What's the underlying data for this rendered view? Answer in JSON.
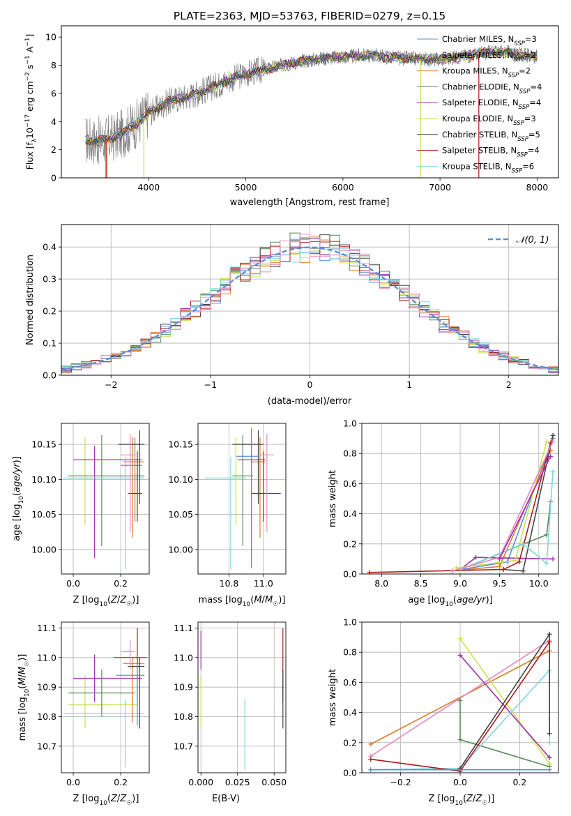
{
  "title": "PLATE=2363, MJD=53763, FIBERID=0279, z=0.15",
  "colors": {
    "chabrier_miles": "#5b8ed6",
    "salpeter_miles": "#888888",
    "kroupa_miles": "#e07b28",
    "chabrier_elodie": "#5a8a5a",
    "salpeter_elodie": "#9b2fae",
    "kroupa_elodie": "#c9e24a",
    "chabrier_stelib": "#444444",
    "salpeter_stelib": "#b01818",
    "kroupa_stelib": "#7fd6e0",
    "pink": "#e48ac0",
    "normal_curve": "#5b8ed6"
  },
  "chart_data": [
    {
      "id": "spectrum",
      "type": "line",
      "xlabel": "wavelength [Angstrom, rest frame]",
      "ylabel": "Flux [f_λ10^-17 erg cm^-2 s^-1 A^-1]",
      "xlim": [
        3100,
        8220
      ],
      "ylim": [
        0,
        10.8
      ],
      "xticks": [
        4000,
        5000,
        6000,
        7000,
        8000
      ],
      "yticks": [
        0,
        2,
        4,
        6,
        8,
        10
      ],
      "grid": false,
      "legend_position": "top-right",
      "legend": [
        {
          "key": "chabrier_miles",
          "label": "Chabrier MILES, N",
          "sub": "SSP",
          "suffix": "=3"
        },
        {
          "key": "salpeter_miles",
          "label": "Salpeter MILES, N",
          "sub": "SSP",
          "suffix": "=2"
        },
        {
          "key": "kroupa_miles",
          "label": "Kroupa MILES, N",
          "sub": "SSP",
          "suffix": "=2"
        },
        {
          "key": "chabrier_elodie",
          "label": "Chabrier ELODIE, N",
          "sub": "SSP",
          "suffix": "=4"
        },
        {
          "key": "salpeter_elodie",
          "label": "Salpeter ELODIE, N",
          "sub": "SSP",
          "suffix": "=4"
        },
        {
          "key": "kroupa_elodie",
          "label": "Kroupa ELODIE, N",
          "sub": "SSP",
          "suffix": "=3"
        },
        {
          "key": "chabrier_stelib",
          "label": "Chabrier STELIB, N",
          "sub": "SSP",
          "suffix": "=5"
        },
        {
          "key": "salpeter_stelib",
          "label": "Salpeter STELIB, N",
          "sub": "SSP",
          "suffix": "=4"
        },
        {
          "key": "kroupa_stelib",
          "label": "Kroupa STELIB, N",
          "sub": "SSP",
          "suffix": "=6"
        }
      ],
      "continuum_points": [
        [
          3350,
          2.7
        ],
        [
          3500,
          2.6
        ],
        [
          3700,
          3.0
        ],
        [
          3900,
          4.0
        ],
        [
          4000,
          4.6
        ],
        [
          4200,
          5.4
        ],
        [
          4500,
          6.0
        ],
        [
          4800,
          6.9
        ],
        [
          5000,
          7.4
        ],
        [
          5200,
          7.7
        ],
        [
          5500,
          8.2
        ],
        [
          5800,
          8.5
        ],
        [
          6000,
          8.6
        ],
        [
          6300,
          8.7
        ],
        [
          6600,
          8.5
        ],
        [
          7000,
          8.4
        ],
        [
          7300,
          8.7
        ],
        [
          7600,
          9.0
        ],
        [
          8000,
          8.6
        ]
      ]
    },
    {
      "id": "residuals",
      "type": "histogram",
      "xlabel": "(data-model)/error",
      "ylabel": "Normed distribution",
      "xlim": [
        -2.5,
        2.5
      ],
      "ylim": [
        0,
        0.47
      ],
      "xticks": [
        -2,
        -1,
        0,
        1,
        2
      ],
      "yticks": [
        0.0,
        0.1,
        0.2,
        0.3,
        0.4
      ],
      "grid": true,
      "legend_position": "top-right",
      "legend_label": "N(0,1)",
      "bin_width": 0.1
    },
    {
      "id": "age_vs_Z",
      "type": "errorbar",
      "xlabel": "Z [log10(Z/Z☉)]",
      "ylabel": "age  [log10(age/yr)]",
      "xlim": [
        -0.05,
        0.32
      ],
      "ylim": [
        9.965,
        10.18
      ],
      "xticks": [
        0.0,
        0.2
      ],
      "yticks": [
        10.0,
        10.05,
        10.1,
        10.15
      ],
      "grid": true,
      "points": [
        {
          "key": "kroupa_elodie",
          "x": 0.05,
          "xerr": [
            0.07,
            0.05
          ],
          "y": 10.1,
          "yerr": [
            0.065,
            0.06
          ]
        },
        {
          "key": "salpeter_elodie",
          "x": 0.09,
          "xerr": [
            0.09,
            0.2
          ],
          "y": 10.128,
          "yerr": [
            0.14,
            0.02
          ]
        },
        {
          "key": "chabrier_elodie",
          "x": 0.12,
          "xerr": [
            0.14,
            0.18
          ],
          "y": 10.105,
          "yerr": [
            0.1,
            0.058
          ]
        },
        {
          "key": "kroupa_stelib",
          "x": 0.22,
          "xerr": [
            0.26,
            0.08
          ],
          "y": 10.102,
          "yerr": [
            0.13,
            0.03
          ]
        },
        {
          "key": "kroupa_miles",
          "x": 0.25,
          "xerr": [
            0.04,
            0.05
          ],
          "y": 10.125,
          "yerr": [
            0.108,
            0.035
          ]
        },
        {
          "key": "salpeter_miles",
          "x": 0.26,
          "xerr": [
            0.06,
            0.03
          ],
          "y": 10.12,
          "yerr": [
            0.08,
            0.04
          ]
        },
        {
          "key": "salpeter_stelib",
          "x": 0.27,
          "xerr": [
            0.04,
            0.02
          ],
          "y": 10.08,
          "yerr": [
            0.04,
            0.06
          ]
        },
        {
          "key": "chabrier_stelib",
          "x": 0.28,
          "xerr": [
            0.09,
            0.02
          ],
          "y": 10.15,
          "yerr": [
            0.085,
            0.02
          ]
        },
        {
          "key": "pink",
          "x": 0.24,
          "xerr": [
            0.04,
            0.02
          ],
          "y": 10.135,
          "yerr": [
            0.11,
            0.03
          ]
        }
      ]
    },
    {
      "id": "age_vs_mass",
      "type": "errorbar",
      "xlabel": "mass [log10(M/M☉)]",
      "ylabel": "",
      "xlim": [
        10.62,
        11.13
      ],
      "ylim": [
        9.965,
        10.18
      ],
      "xticks": [
        10.8,
        11.0
      ],
      "yticks": [
        10.0,
        10.05,
        10.1,
        10.15
      ],
      "grid": true,
      "points": [
        {
          "key": "kroupa_elodie",
          "x": 10.84,
          "xerr": [
            0.02,
            0.05
          ],
          "y": 10.1,
          "yerr": [
            0.065,
            0.06
          ]
        },
        {
          "key": "salpeter_elodie",
          "x": 10.93,
          "xerr": [
            0.08,
            0.08
          ],
          "y": 10.128,
          "yerr": [
            0.14,
            0.02
          ]
        },
        {
          "key": "chabrier_elodie",
          "x": 10.88,
          "xerr": [
            0.06,
            0.06
          ],
          "y": 10.105,
          "yerr": [
            0.1,
            0.058
          ]
        },
        {
          "key": "kroupa_stelib",
          "x": 10.81,
          "xerr": [
            0.15,
            0.09
          ],
          "y": 10.102,
          "yerr": [
            0.13,
            0.03
          ]
        },
        {
          "key": "kroupa_miles",
          "x": 10.98,
          "xerr": [
            0.05,
            0.03
          ],
          "y": 10.125,
          "yerr": [
            0.108,
            0.035
          ]
        },
        {
          "key": "salpeter_stelib",
          "x": 11.0,
          "xerr": [
            0.07,
            0.1
          ],
          "y": 10.08,
          "yerr": [
            0.04,
            0.06
          ]
        },
        {
          "key": "chabrier_stelib",
          "x": 10.97,
          "xerr": [
            0.15,
            0.03
          ],
          "y": 10.15,
          "yerr": [
            0.085,
            0.02
          ]
        },
        {
          "key": "chabrier_miles",
          "x": 10.93,
          "xerr": [
            0.09,
            0.04
          ],
          "y": 10.133,
          "yerr": [
            0.16,
            0.04
          ]
        },
        {
          "key": "pink",
          "x": 11.02,
          "xerr": [
            0.04,
            0.04
          ],
          "y": 10.135,
          "yerr": [
            0.11,
            0.03
          ]
        }
      ]
    },
    {
      "id": "mass_vs_Z",
      "type": "errorbar",
      "xlabel": "Z [log10(Z/Z☉)]",
      "ylabel": "mass [log10(M/M☉)]",
      "xlim": [
        -0.05,
        0.32
      ],
      "ylim": [
        10.61,
        11.12
      ],
      "xticks": [
        0.0,
        0.2
      ],
      "yticks": [
        10.7,
        10.8,
        10.9,
        11.0,
        11.1
      ],
      "grid": true,
      "points": [
        {
          "key": "kroupa_elodie",
          "x": 0.05,
          "xerr": [
            0.07,
            0.22
          ],
          "y": 10.84,
          "yerr": [
            0.08,
            0.1
          ]
        },
        {
          "key": "salpeter_elodie",
          "x": 0.09,
          "xerr": [
            0.09,
            0.2
          ],
          "y": 10.93,
          "yerr": [
            0.08,
            0.08
          ]
        },
        {
          "key": "chabrier_elodie",
          "x": 0.12,
          "xerr": [
            0.14,
            0.14
          ],
          "y": 10.88,
          "yerr": [
            0.08,
            0.08
          ]
        },
        {
          "key": "kroupa_stelib",
          "x": 0.22,
          "xerr": [
            0.26,
            0.08
          ],
          "y": 10.81,
          "yerr": [
            0.18,
            0.05
          ]
        },
        {
          "key": "kroupa_miles",
          "x": 0.25,
          "xerr": [
            0.04,
            0.05
          ],
          "y": 10.98,
          "yerr": [
            0.2,
            0.02
          ]
        },
        {
          "key": "salpeter_stelib",
          "x": 0.27,
          "xerr": [
            0.1,
            0.04
          ],
          "y": 11.0,
          "yerr": [
            0.15,
            0.1
          ]
        },
        {
          "key": "chabrier_stelib",
          "x": 0.28,
          "xerr": [
            0.05,
            0.02
          ],
          "y": 10.97,
          "yerr": [
            0.21,
            0.03
          ]
        },
        {
          "key": "chabrier_miles",
          "x": 0.27,
          "xerr": [
            0.09,
            0.03
          ],
          "y": 10.94,
          "yerr": [
            0.17,
            0.04
          ]
        },
        {
          "key": "pink",
          "x": 0.24,
          "xerr": [
            0.04,
            0.02
          ],
          "y": 11.02,
          "yerr": [
            0.06,
            0.04
          ]
        }
      ]
    },
    {
      "id": "mass_vs_ebv",
      "type": "errorbar",
      "xlabel": "E(B-V)",
      "ylabel": "",
      "xlim": [
        -0.002,
        0.058
      ],
      "ylim": [
        10.61,
        11.12
      ],
      "xticks": [
        0.0,
        0.025,
        0.05
      ],
      "yticks": [
        10.7,
        10.8,
        10.9,
        11.0,
        11.1
      ],
      "grid": true,
      "points": [
        {
          "key": "kroupa_elodie",
          "x": 0.0,
          "xerr": [
            0,
            0
          ],
          "y": 10.84,
          "yerr": [
            0.08,
            0.1
          ]
        },
        {
          "key": "salpeter_elodie",
          "x": 0.0,
          "xerr": [
            0,
            0
          ],
          "y": 11.0,
          "yerr": [
            0.04,
            0.09
          ]
        },
        {
          "key": "kroupa_stelib",
          "x": 0.03,
          "xerr": [
            0,
            0
          ],
          "y": 10.79,
          "yerr": [
            0.17,
            0.07
          ]
        },
        {
          "key": "salpeter_stelib",
          "x": 0.056,
          "xerr": [
            0,
            0
          ],
          "y": 11.0,
          "yerr": [
            0.15,
            0.1
          ]
        },
        {
          "key": "chabrier_stelib",
          "x": 0.056,
          "xerr": [
            0,
            0
          ],
          "y": 10.88,
          "yerr": [
            0.12,
            0.08
          ]
        }
      ]
    },
    {
      "id": "massweight_vs_age",
      "type": "line",
      "xlabel": "age  [log10(age/yr)]",
      "ylabel": "mass weight",
      "xlim": [
        7.75,
        10.25
      ],
      "ylim": [
        0,
        1.0
      ],
      "xticks": [
        8.0,
        8.5,
        9.0,
        9.5,
        10.0
      ],
      "yticks": [
        0.0,
        0.2,
        0.4,
        0.6,
        0.8,
        1.0
      ],
      "grid": true,
      "series": [
        {
          "key": "chabrier_miles",
          "x": [
            8.9,
            9.6,
            10.18
          ],
          "y": [
            0.02,
            0.08,
            0.9
          ]
        },
        {
          "key": "kroupa_miles",
          "x": [
            8.9,
            9.5,
            10.15
          ],
          "y": [
            0.02,
            0.05,
            0.82
          ]
        },
        {
          "key": "chabrier_elodie",
          "x": [
            9.0,
            10.1,
            10.15
          ],
          "y": [
            0.03,
            0.26,
            0.48
          ]
        },
        {
          "key": "salpeter_elodie",
          "x": [
            9.0,
            9.2,
            10.18
          ],
          "y": [
            0.03,
            0.11,
            0.1
          ]
        },
        {
          "key": "kroupa_elodie",
          "x": [
            8.95,
            9.7,
            10.1
          ],
          "y": [
            0.04,
            0.09,
            0.88
          ]
        },
        {
          "key": "chabrier_stelib",
          "x": [
            9.55,
            9.8,
            10.18
          ],
          "y": [
            0.03,
            0.02,
            0.92
          ]
        },
        {
          "key": "salpeter_stelib",
          "x": [
            7.85,
            9.55,
            9.75,
            10.15
          ],
          "y": [
            0.01,
            0.03,
            0.08,
            0.87
          ]
        },
        {
          "key": "kroupa_stelib",
          "x": [
            9.0,
            9.8,
            10.1,
            10.18
          ],
          "y": [
            0.03,
            0.2,
            0.07,
            0.68
          ]
        },
        {
          "key": "pink",
          "x": [
            8.9,
            9.5,
            10.18
          ],
          "y": [
            0.02,
            0.11,
            0.88
          ]
        },
        {
          "key": "salpeter_elodie",
          "x": [
            9.5,
            10.15
          ],
          "y": [
            0.1,
            0.78
          ]
        }
      ]
    },
    {
      "id": "massweight_vs_Z",
      "type": "line",
      "xlabel": "Z [log10(Z/Z☉)]",
      "ylabel": "mass weight",
      "xlim": [
        -0.33,
        0.33
      ],
      "ylim": [
        0,
        1.0
      ],
      "xticks": [
        -0.2,
        0.0,
        0.2
      ],
      "yticks": [
        0.0,
        0.2,
        0.4,
        0.6,
        0.8,
        1.0
      ],
      "grid": true,
      "series": [
        {
          "key": "kroupa_miles",
          "x": [
            -0.3,
            0.3
          ],
          "y": [
            0.19,
            0.81
          ]
        },
        {
          "key": "pink",
          "x": [
            -0.3,
            0.3
          ],
          "y": [
            0.11,
            0.88
          ]
        },
        {
          "key": "kroupa_elodie",
          "x": [
            0.0,
            0.3
          ],
          "y": [
            0.89,
            0.06
          ]
        },
        {
          "key": "salpeter_elodie",
          "x": [
            0.0,
            0.3
          ],
          "y": [
            0.78,
            0.1
          ]
        },
        {
          "key": "chabrier_elodie",
          "x": [
            0.0,
            0.0,
            0.3
          ],
          "y": [
            0.48,
            0.22,
            0.04
          ]
        },
        {
          "key": "kroupa_stelib",
          "x": [
            -0.3,
            0.0,
            0.3,
            0.3
          ],
          "y": [
            0.02,
            0.03,
            0.68,
            0.2
          ]
        },
        {
          "key": "chabrier_stelib",
          "x": [
            0.0,
            0.3,
            0.3
          ],
          "y": [
            0.03,
            0.92,
            0.26
          ]
        },
        {
          "key": "salpeter_stelib",
          "x": [
            -0.3,
            0.0,
            0.3
          ],
          "y": [
            0.09,
            0.01,
            0.87
          ]
        },
        {
          "key": "chabrier_miles",
          "x": [
            -0.3,
            0.3
          ],
          "y": [
            0.02,
            0.02
          ]
        }
      ]
    }
  ]
}
